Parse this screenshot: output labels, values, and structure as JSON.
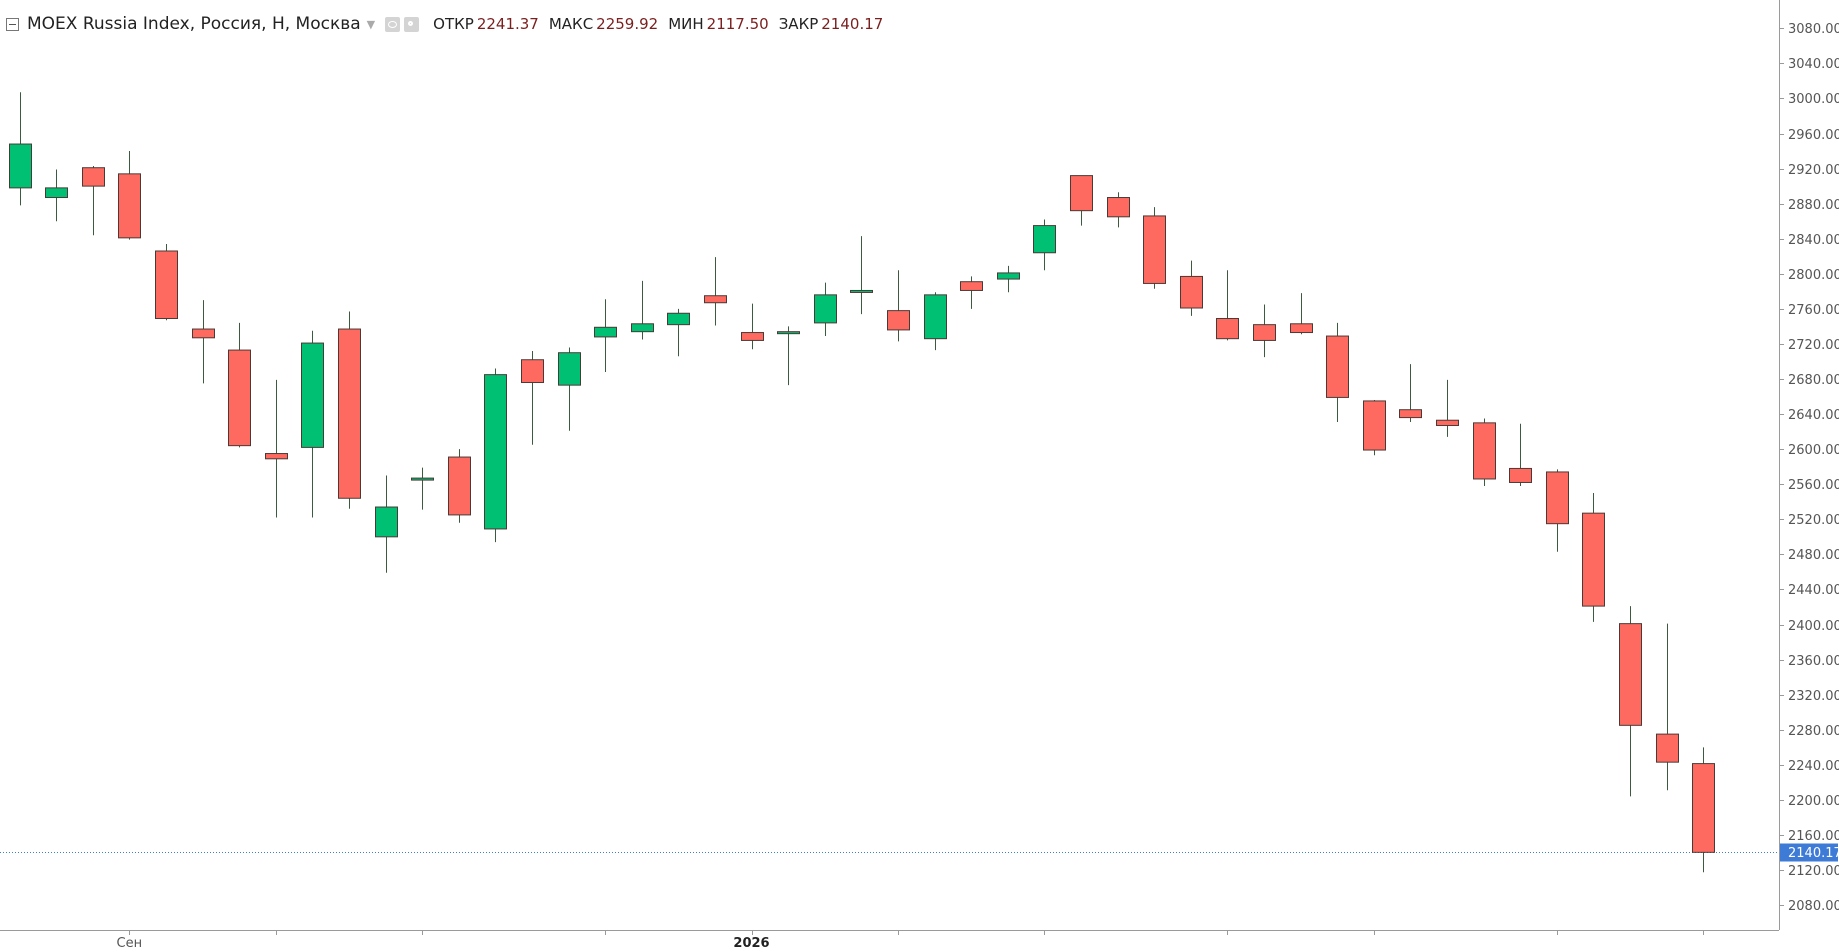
{
  "legend": {
    "symbol": "MOEX Russia Index, Россия, Н, Москва",
    "open_label": "ОТКР",
    "open_value": "2241.37",
    "high_label": "МАКС",
    "high_value": "2259.92",
    "low_label": "МИН",
    "low_value": "2117.50",
    "close_label": "ЗАКР",
    "close_value": "2140.17"
  },
  "colors": {
    "up": "#00c073",
    "down": "#ff6a60",
    "wick": "#3c5a40",
    "last_price_line": "#3d7bd6",
    "last_price_badge": "#3d7bd6",
    "axis_text": "#555555"
  },
  "chart_data": {
    "type": "candlestick",
    "title": "MOEX Russia Index, Россия, Н, Москва",
    "ylim": [
      2055,
      3110
    ],
    "y_ticks": [
      "2080.00",
      "2120.00",
      "2160.00",
      "2200.00",
      "2240.00",
      "2280.00",
      "2320.00",
      "2360.00",
      "2400.00",
      "2440.00",
      "2480.00",
      "2520.00",
      "2560.00",
      "2600.00",
      "2640.00",
      "2680.00",
      "2720.00",
      "2760.00",
      "2800.00",
      "2840.00",
      "2880.00",
      "2920.00",
      "2960.00",
      "3000.00",
      "3040.00",
      "3080.00"
    ],
    "x_labels": [
      {
        "text": "Сен",
        "index": 3,
        "bold": false
      },
      {
        "text": "2026",
        "index": 20,
        "bold": true
      }
    ],
    "x_tick_indices": [
      3,
      7,
      11,
      16,
      20,
      24,
      28,
      33,
      37,
      42,
      46
    ],
    "last_price": "2140.17",
    "candles": [
      {
        "o": 2898,
        "h": 3007,
        "l": 2878,
        "c": 2948
      },
      {
        "o": 2887,
        "h": 2919,
        "l": 2860,
        "c": 2898
      },
      {
        "o": 2921,
        "h": 2923,
        "l": 2844,
        "c": 2900
      },
      {
        "o": 2914,
        "h": 2940,
        "l": 2839,
        "c": 2841
      },
      {
        "o": 2826,
        "h": 2834,
        "l": 2747,
        "c": 2749
      },
      {
        "o": 2737,
        "h": 2770,
        "l": 2675,
        "c": 2727
      },
      {
        "o": 2713,
        "h": 2744,
        "l": 2602,
        "c": 2604
      },
      {
        "o": 2595,
        "h": 2679,
        "l": 2522,
        "c": 2589
      },
      {
        "o": 2602,
        "h": 2735,
        "l": 2522,
        "c": 2721
      },
      {
        "o": 2737,
        "h": 2757,
        "l": 2532,
        "c": 2544
      },
      {
        "o": 2500,
        "h": 2570,
        "l": 2459,
        "c": 2534
      },
      {
        "o": 2565,
        "h": 2579,
        "l": 2531,
        "c": 2567
      },
      {
        "o": 2591,
        "h": 2600,
        "l": 2516,
        "c": 2525
      },
      {
        "o": 2509,
        "h": 2692,
        "l": 2494,
        "c": 2685
      },
      {
        "o": 2702,
        "h": 2712,
        "l": 2605,
        "c": 2676
      },
      {
        "o": 2673,
        "h": 2716,
        "l": 2621,
        "c": 2710
      },
      {
        "o": 2728,
        "h": 2771,
        "l": 2688,
        "c": 2739
      },
      {
        "o": 2734,
        "h": 2792,
        "l": 2725,
        "c": 2743
      },
      {
        "o": 2742,
        "h": 2760,
        "l": 2706,
        "c": 2755
      },
      {
        "o": 2775,
        "h": 2819,
        "l": 2741,
        "c": 2767
      },
      {
        "o": 2733,
        "h": 2766,
        "l": 2714,
        "c": 2724
      },
      {
        "o": 2732,
        "h": 2740,
        "l": 2673,
        "c": 2734
      },
      {
        "o": 2744,
        "h": 2790,
        "l": 2729,
        "c": 2776
      },
      {
        "o": 2779,
        "h": 2843,
        "l": 2754,
        "c": 2781
      },
      {
        "o": 2758,
        "h": 2804,
        "l": 2723,
        "c": 2736
      },
      {
        "o": 2726,
        "h": 2779,
        "l": 2713,
        "c": 2776
      },
      {
        "o": 2791,
        "h": 2797,
        "l": 2760,
        "c": 2781
      },
      {
        "o": 2794,
        "h": 2809,
        "l": 2779,
        "c": 2801
      },
      {
        "o": 2824,
        "h": 2862,
        "l": 2804,
        "c": 2855
      },
      {
        "o": 2912,
        "h": 2912,
        "l": 2855,
        "c": 2872
      },
      {
        "o": 2887,
        "h": 2893,
        "l": 2853,
        "c": 2865
      },
      {
        "o": 2866,
        "h": 2876,
        "l": 2783,
        "c": 2789
      },
      {
        "o": 2797,
        "h": 2815,
        "l": 2752,
        "c": 2761
      },
      {
        "o": 2749,
        "h": 2804,
        "l": 2724,
        "c": 2726
      },
      {
        "o": 2742,
        "h": 2765,
        "l": 2705,
        "c": 2724
      },
      {
        "o": 2743,
        "h": 2778,
        "l": 2731,
        "c": 2733
      },
      {
        "o": 2729,
        "h": 2744,
        "l": 2631,
        "c": 2659
      },
      {
        "o": 2655,
        "h": 2656,
        "l": 2593,
        "c": 2599
      },
      {
        "o": 2645,
        "h": 2697,
        "l": 2631,
        "c": 2636
      },
      {
        "o": 2633,
        "h": 2679,
        "l": 2614,
        "c": 2627
      },
      {
        "o": 2630,
        "h": 2635,
        "l": 2558,
        "c": 2566
      },
      {
        "o": 2578,
        "h": 2629,
        "l": 2558,
        "c": 2562
      },
      {
        "o": 2574,
        "h": 2577,
        "l": 2483,
        "c": 2515
      },
      {
        "o": 2527,
        "h": 2550,
        "l": 2403,
        "c": 2421
      },
      {
        "o": 2401,
        "h": 2421,
        "l": 2204,
        "c": 2285
      },
      {
        "o": 2275,
        "h": 2401,
        "l": 2211,
        "c": 2243
      },
      {
        "o": 2241.37,
        "h": 2259.92,
        "l": 2117.5,
        "c": 2140.17
      }
    ]
  }
}
